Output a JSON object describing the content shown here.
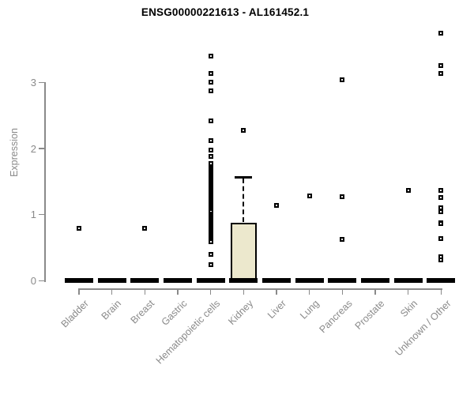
{
  "chart_data": {
    "type": "boxplot",
    "title": "ENSG00000221613 - AL161452.1",
    "ylabel": "Expression",
    "xlabel": "",
    "ylim": [
      0,
      3.9
    ],
    "yticks": [
      0,
      1,
      2,
      3
    ],
    "grid": false,
    "legend": false,
    "categories": [
      "Bladder",
      "Brain",
      "Breast",
      "Gastric",
      "Hematopoietic cells",
      "Kidney",
      "Liver",
      "Lung",
      "Pancreas",
      "Prostate",
      "Skin",
      "Unknown / Other"
    ],
    "series": [
      {
        "category": "Bladder",
        "q1": 0,
        "median": 0,
        "q3": 0,
        "whisker_low": 0,
        "whisker_high": 0,
        "outliers": [
          0.79
        ]
      },
      {
        "category": "Brain",
        "q1": 0,
        "median": 0,
        "q3": 0,
        "whisker_low": 0,
        "whisker_high": 0,
        "outliers": []
      },
      {
        "category": "Breast",
        "q1": 0,
        "median": 0,
        "q3": 0,
        "whisker_low": 0,
        "whisker_high": 0,
        "outliers": [
          0.79
        ]
      },
      {
        "category": "Gastric",
        "q1": 0,
        "median": 0,
        "q3": 0,
        "whisker_low": 0,
        "whisker_high": 0,
        "outliers": []
      },
      {
        "category": "Hematopoietic cells",
        "q1": 0,
        "median": 0,
        "q3": 0,
        "whisker_low": 0,
        "whisker_high": 0,
        "outliers": [
          3.4,
          3.14,
          3.01,
          2.87,
          2.42,
          2.12,
          1.98,
          1.88,
          1.77,
          1.71,
          1.69,
          1.67,
          1.65,
          1.63,
          1.61,
          1.59,
          1.57,
          1.55,
          1.53,
          1.51,
          1.49,
          1.47,
          1.45,
          1.43,
          1.41,
          1.39,
          1.37,
          1.35,
          1.33,
          1.31,
          1.29,
          1.27,
          1.25,
          1.23,
          1.21,
          1.19,
          1.17,
          1.15,
          1.13,
          1.11,
          1.09,
          1.07,
          1.05,
          1.01,
          0.99,
          0.97,
          0.95,
          0.93,
          0.91,
          0.89,
          0.87,
          0.85,
          0.83,
          0.81,
          0.79,
          0.77,
          0.75,
          0.73,
          0.71,
          0.69,
          0.67,
          0.65,
          0.63,
          0.61,
          0.59,
          0.4,
          0.24
        ]
      },
      {
        "category": "Kidney",
        "q1": 0,
        "median": 0,
        "q3": 0.88,
        "whisker_low": 0,
        "whisker_high": 1.58,
        "outliers": [
          2.28
        ]
      },
      {
        "category": "Liver",
        "q1": 0,
        "median": 0,
        "q3": 0,
        "whisker_low": 0,
        "whisker_high": 0,
        "outliers": [
          1.14
        ]
      },
      {
        "category": "Lung",
        "q1": 0,
        "median": 0,
        "q3": 0,
        "whisker_low": 0,
        "whisker_high": 0,
        "outliers": [
          1.28
        ]
      },
      {
        "category": "Pancreas",
        "q1": 0,
        "median": 0,
        "q3": 0,
        "whisker_low": 0,
        "whisker_high": 0,
        "outliers": [
          3.04,
          1.27,
          0.62
        ]
      },
      {
        "category": "Prostate",
        "q1": 0,
        "median": 0,
        "q3": 0,
        "whisker_low": 0,
        "whisker_high": 0,
        "outliers": []
      },
      {
        "category": "Skin",
        "q1": 0,
        "median": 0,
        "q3": 0,
        "whisker_low": 0,
        "whisker_high": 0,
        "outliers": [
          1.37
        ]
      },
      {
        "category": "Unknown / Other",
        "q1": 0,
        "median": 0,
        "q3": 0,
        "whisker_low": 0,
        "whisker_high": 0,
        "outliers": [
          3.75,
          3.26,
          3.14,
          1.37,
          1.26,
          1.1,
          1.04,
          0.88,
          0.86,
          0.64,
          0.36,
          0.32
        ]
      }
    ],
    "colors": {
      "box_fill": "#ece8cd",
      "box_border": "#000000",
      "median": "#000000",
      "whisker": "#000000",
      "point": "#000000",
      "axis": "#8a8a8a",
      "title": "#000000",
      "background": "#ffffff"
    }
  }
}
